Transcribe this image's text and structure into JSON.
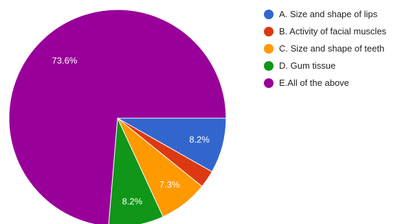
{
  "chart_data": {
    "type": "pie",
    "title": "",
    "start_angle_deg": 0,
    "series": [
      {
        "name": "",
        "slices": [
          {
            "label": "A. Size and shape of lips",
            "value": 8.2,
            "color": "#3366cc",
            "data_label": "8.2%"
          },
          {
            "label": "B. Activity of facial muscles",
            "value": 2.6,
            "color": "#dc3912",
            "data_label": ""
          },
          {
            "label": "C. Size and shape of teeth",
            "value": 7.3,
            "color": "#ff9900",
            "data_label": "7.3%"
          },
          {
            "label": "D. Gum tissue",
            "value": 8.2,
            "color": "#109618",
            "data_label": "8.2%"
          },
          {
            "label": "E.All of the above",
            "value": 73.6,
            "color": "#990099",
            "data_label": "73.6%"
          }
        ]
      }
    ],
    "legend": {
      "placement": "right",
      "items": [
        {
          "label": "A. Size and shape of lips",
          "color": "#3366cc"
        },
        {
          "label": "B. Activity of facial muscles",
          "color": "#dc3912"
        },
        {
          "label": "C. Size and shape of teeth",
          "color": "#ff9900"
        },
        {
          "label": "D. Gum tissue",
          "color": "#109618"
        },
        {
          "label": "E.All of the above",
          "color": "#990099"
        }
      ]
    }
  }
}
